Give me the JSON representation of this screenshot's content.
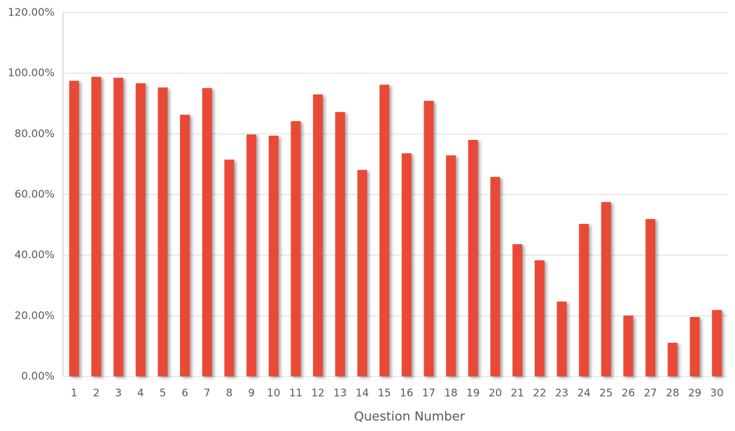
{
  "chart_data": {
    "type": "bar",
    "x_label": "Question Number",
    "categories": [
      "1",
      "2",
      "3",
      "4",
      "5",
      "6",
      "7",
      "8",
      "9",
      "10",
      "11",
      "12",
      "13",
      "14",
      "15",
      "16",
      "17",
      "18",
      "19",
      "20",
      "21",
      "22",
      "23",
      "24",
      "25",
      "26",
      "27",
      "28",
      "29",
      "30"
    ],
    "values": [
      97.5,
      98.8,
      98.5,
      96.7,
      95.3,
      86.3,
      95.1,
      71.5,
      79.8,
      79.4,
      84.2,
      93.0,
      87.2,
      68.1,
      96.2,
      73.6,
      90.9,
      72.9,
      78.0,
      65.8,
      43.6,
      38.3,
      24.7,
      50.3,
      57.5,
      20.1,
      51.9,
      11.1,
      19.6,
      21.9
    ],
    "color": "#e84a37",
    "ylim": [
      0,
      120
    ],
    "yticks": [
      {
        "value": 0,
        "label": "0.00%"
      },
      {
        "value": 20,
        "label": "20.00%"
      },
      {
        "value": 40,
        "label": "40.00%"
      },
      {
        "value": 60,
        "label": "60.00%"
      },
      {
        "value": 80,
        "label": "80.00%"
      },
      {
        "value": 100,
        "label": "100.00%"
      },
      {
        "value": 120,
        "label": "120.00%"
      }
    ],
    "grid": true
  }
}
